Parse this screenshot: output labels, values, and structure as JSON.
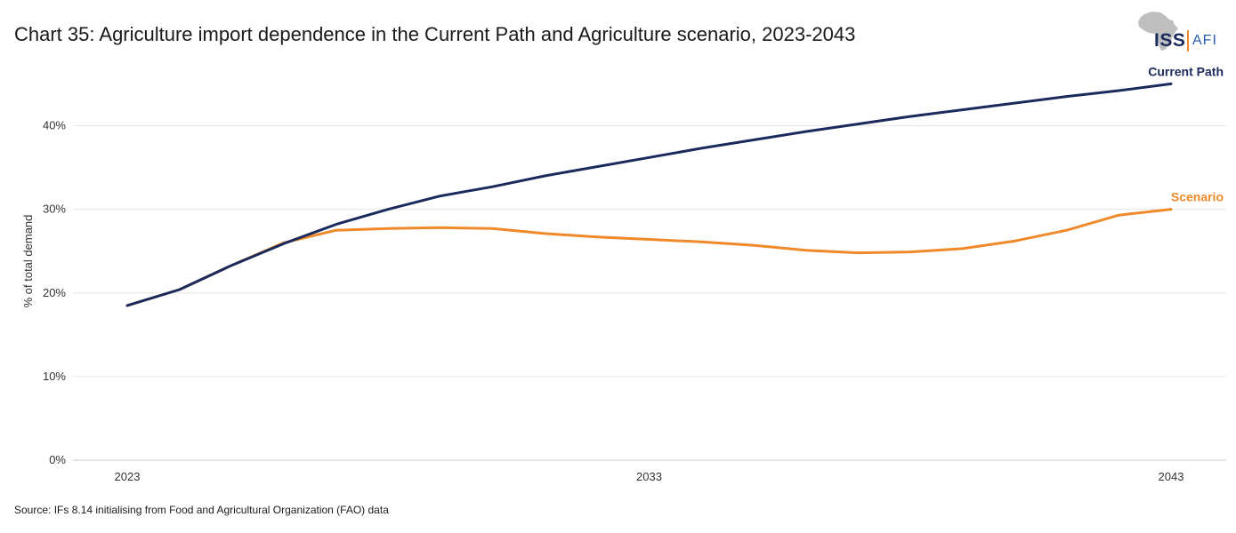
{
  "chart_data": {
    "type": "line",
    "title": "Chart 35: Agriculture import dependence in the Current Path and Agriculture scenario, 2023-2043",
    "xlabel": "",
    "ylabel": "% of total demand",
    "x": [
      2023,
      2024,
      2025,
      2026,
      2027,
      2028,
      2029,
      2030,
      2031,
      2032,
      2033,
      2034,
      2035,
      2036,
      2037,
      2038,
      2039,
      2040,
      2041,
      2042,
      2043
    ],
    "x_ticks": [
      2023,
      2033,
      2043
    ],
    "x_tick_labels": [
      "2023",
      "2033",
      "2043"
    ],
    "xlim": [
      2023,
      2043
    ],
    "ylim": [
      0,
      45
    ],
    "y_ticks": [
      0,
      10,
      20,
      30,
      40
    ],
    "y_tick_labels": [
      "0%",
      "10%",
      "20%",
      "30%",
      "40%"
    ],
    "grid": true,
    "series": [
      {
        "name": "Current Path",
        "label": "Current Path",
        "color": "#1b2a5c",
        "values": [
          18.5,
          20.4,
          23.3,
          25.9,
          28.2,
          30.0,
          31.6,
          32.7,
          34.0,
          35.1,
          36.2,
          37.3,
          38.3,
          39.3,
          40.2,
          41.1,
          41.9,
          42.7,
          43.5,
          44.2,
          45.0
        ]
      },
      {
        "name": "Scenario",
        "label": "Scenario",
        "color": "#f0892a",
        "values": [
          18.5,
          20.4,
          23.3,
          26.0,
          27.5,
          27.7,
          27.8,
          27.7,
          27.1,
          26.7,
          26.4,
          26.1,
          25.7,
          25.1,
          24.8,
          24.9,
          25.3,
          26.2,
          27.5,
          29.3,
          30.0
        ]
      }
    ]
  },
  "logo": {
    "iss": "ISS",
    "afi": "AFI"
  },
  "source": "Source: IFs 8.14 initialising from Food and Agricultural Organization (FAO) data",
  "colors": {
    "grid": "#e6e6e6",
    "axis": "#cccccc"
  }
}
